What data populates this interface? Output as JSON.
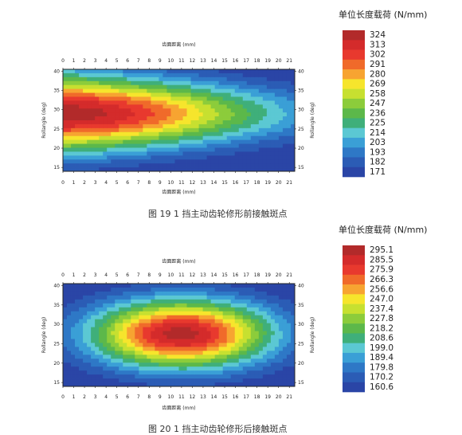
{
  "chart_data": [
    {
      "type": "heatmap",
      "subtype": "contour",
      "caption": "图 19 1 挡主动齿轮修形前接触斑点",
      "xlabel": "齿面距离 (mm)",
      "ylabel": "Rollangle (deg)",
      "xlim": [
        0,
        21.5
      ],
      "ylim": [
        14,
        40.5
      ],
      "x_ticks": [
        "0",
        "1",
        "2",
        "3",
        "4",
        "5",
        "6",
        "7",
        "8",
        "9",
        "10",
        "11",
        "12",
        "13",
        "14",
        "15",
        "16",
        "17",
        "18",
        "19",
        "20",
        "21"
      ],
      "y_ticks": [
        "15",
        "20",
        "25",
        "30",
        "35",
        "40"
      ],
      "legend": {
        "title": "单位长度载荷 (N/mm)",
        "levels": [
          "324",
          "313",
          "302",
          "291",
          "280",
          "269",
          "258",
          "247",
          "236",
          "225",
          "214",
          "203",
          "193",
          "182",
          "171"
        ],
        "colors": [
          "#b22a2a",
          "#d42b2b",
          "#e8392e",
          "#f06a2a",
          "#f7a431",
          "#f6e52c",
          "#c7e030",
          "#8ccc3b",
          "#5cb84a",
          "#3faf7a",
          "#5bc8d3",
          "#3a9fd6",
          "#2e78c6",
          "#2b5cb5",
          "#2a45a6"
        ]
      },
      "field": {
        "model": "skewed",
        "center": {
          "x": 0.5,
          "y": 29
        },
        "peak": 330,
        "base": 165,
        "sx": 20,
        "sy": 11,
        "shear": 0.5
      }
    },
    {
      "type": "heatmap",
      "subtype": "contour",
      "caption": "图 20 1 挡主动齿轮修形后接触斑点",
      "xlabel": "齿面距离 (mm)",
      "ylabel": "Rollangle (deg)",
      "xlim": [
        0,
        21.5
      ],
      "ylim": [
        14,
        40.5
      ],
      "x_ticks": [
        "0",
        "1",
        "2",
        "3",
        "4",
        "5",
        "6",
        "7",
        "8",
        "9",
        "10",
        "11",
        "12",
        "13",
        "14",
        "15",
        "16",
        "17",
        "18",
        "19",
        "20",
        "21"
      ],
      "y_ticks": [
        "15",
        "20",
        "25",
        "30",
        "35",
        "40"
      ],
      "legend": {
        "title": "单位长度载荷 (N/mm)",
        "levels": [
          "295.1",
          "285.5",
          "275.9",
          "266.3",
          "256.6",
          "247.0",
          "237.4",
          "227.8",
          "218.2",
          "208.6",
          "199.0",
          "189.4",
          "179.8",
          "170.2",
          "160.6"
        ],
        "colors": [
          "#b22a2a",
          "#d42b2b",
          "#e8392e",
          "#f06a2a",
          "#f7a431",
          "#f6e52c",
          "#c7e030",
          "#8ccc3b",
          "#5cb84a",
          "#3faf7a",
          "#5bc8d3",
          "#3a9fd6",
          "#2e78c6",
          "#2b5cb5",
          "#2a45a6"
        ]
      },
      "field": {
        "model": "ellipse",
        "center": {
          "x": 11,
          "y": 27.5
        },
        "peak": 300,
        "base": 155,
        "sx": 9.5,
        "sy": 10
      }
    }
  ]
}
